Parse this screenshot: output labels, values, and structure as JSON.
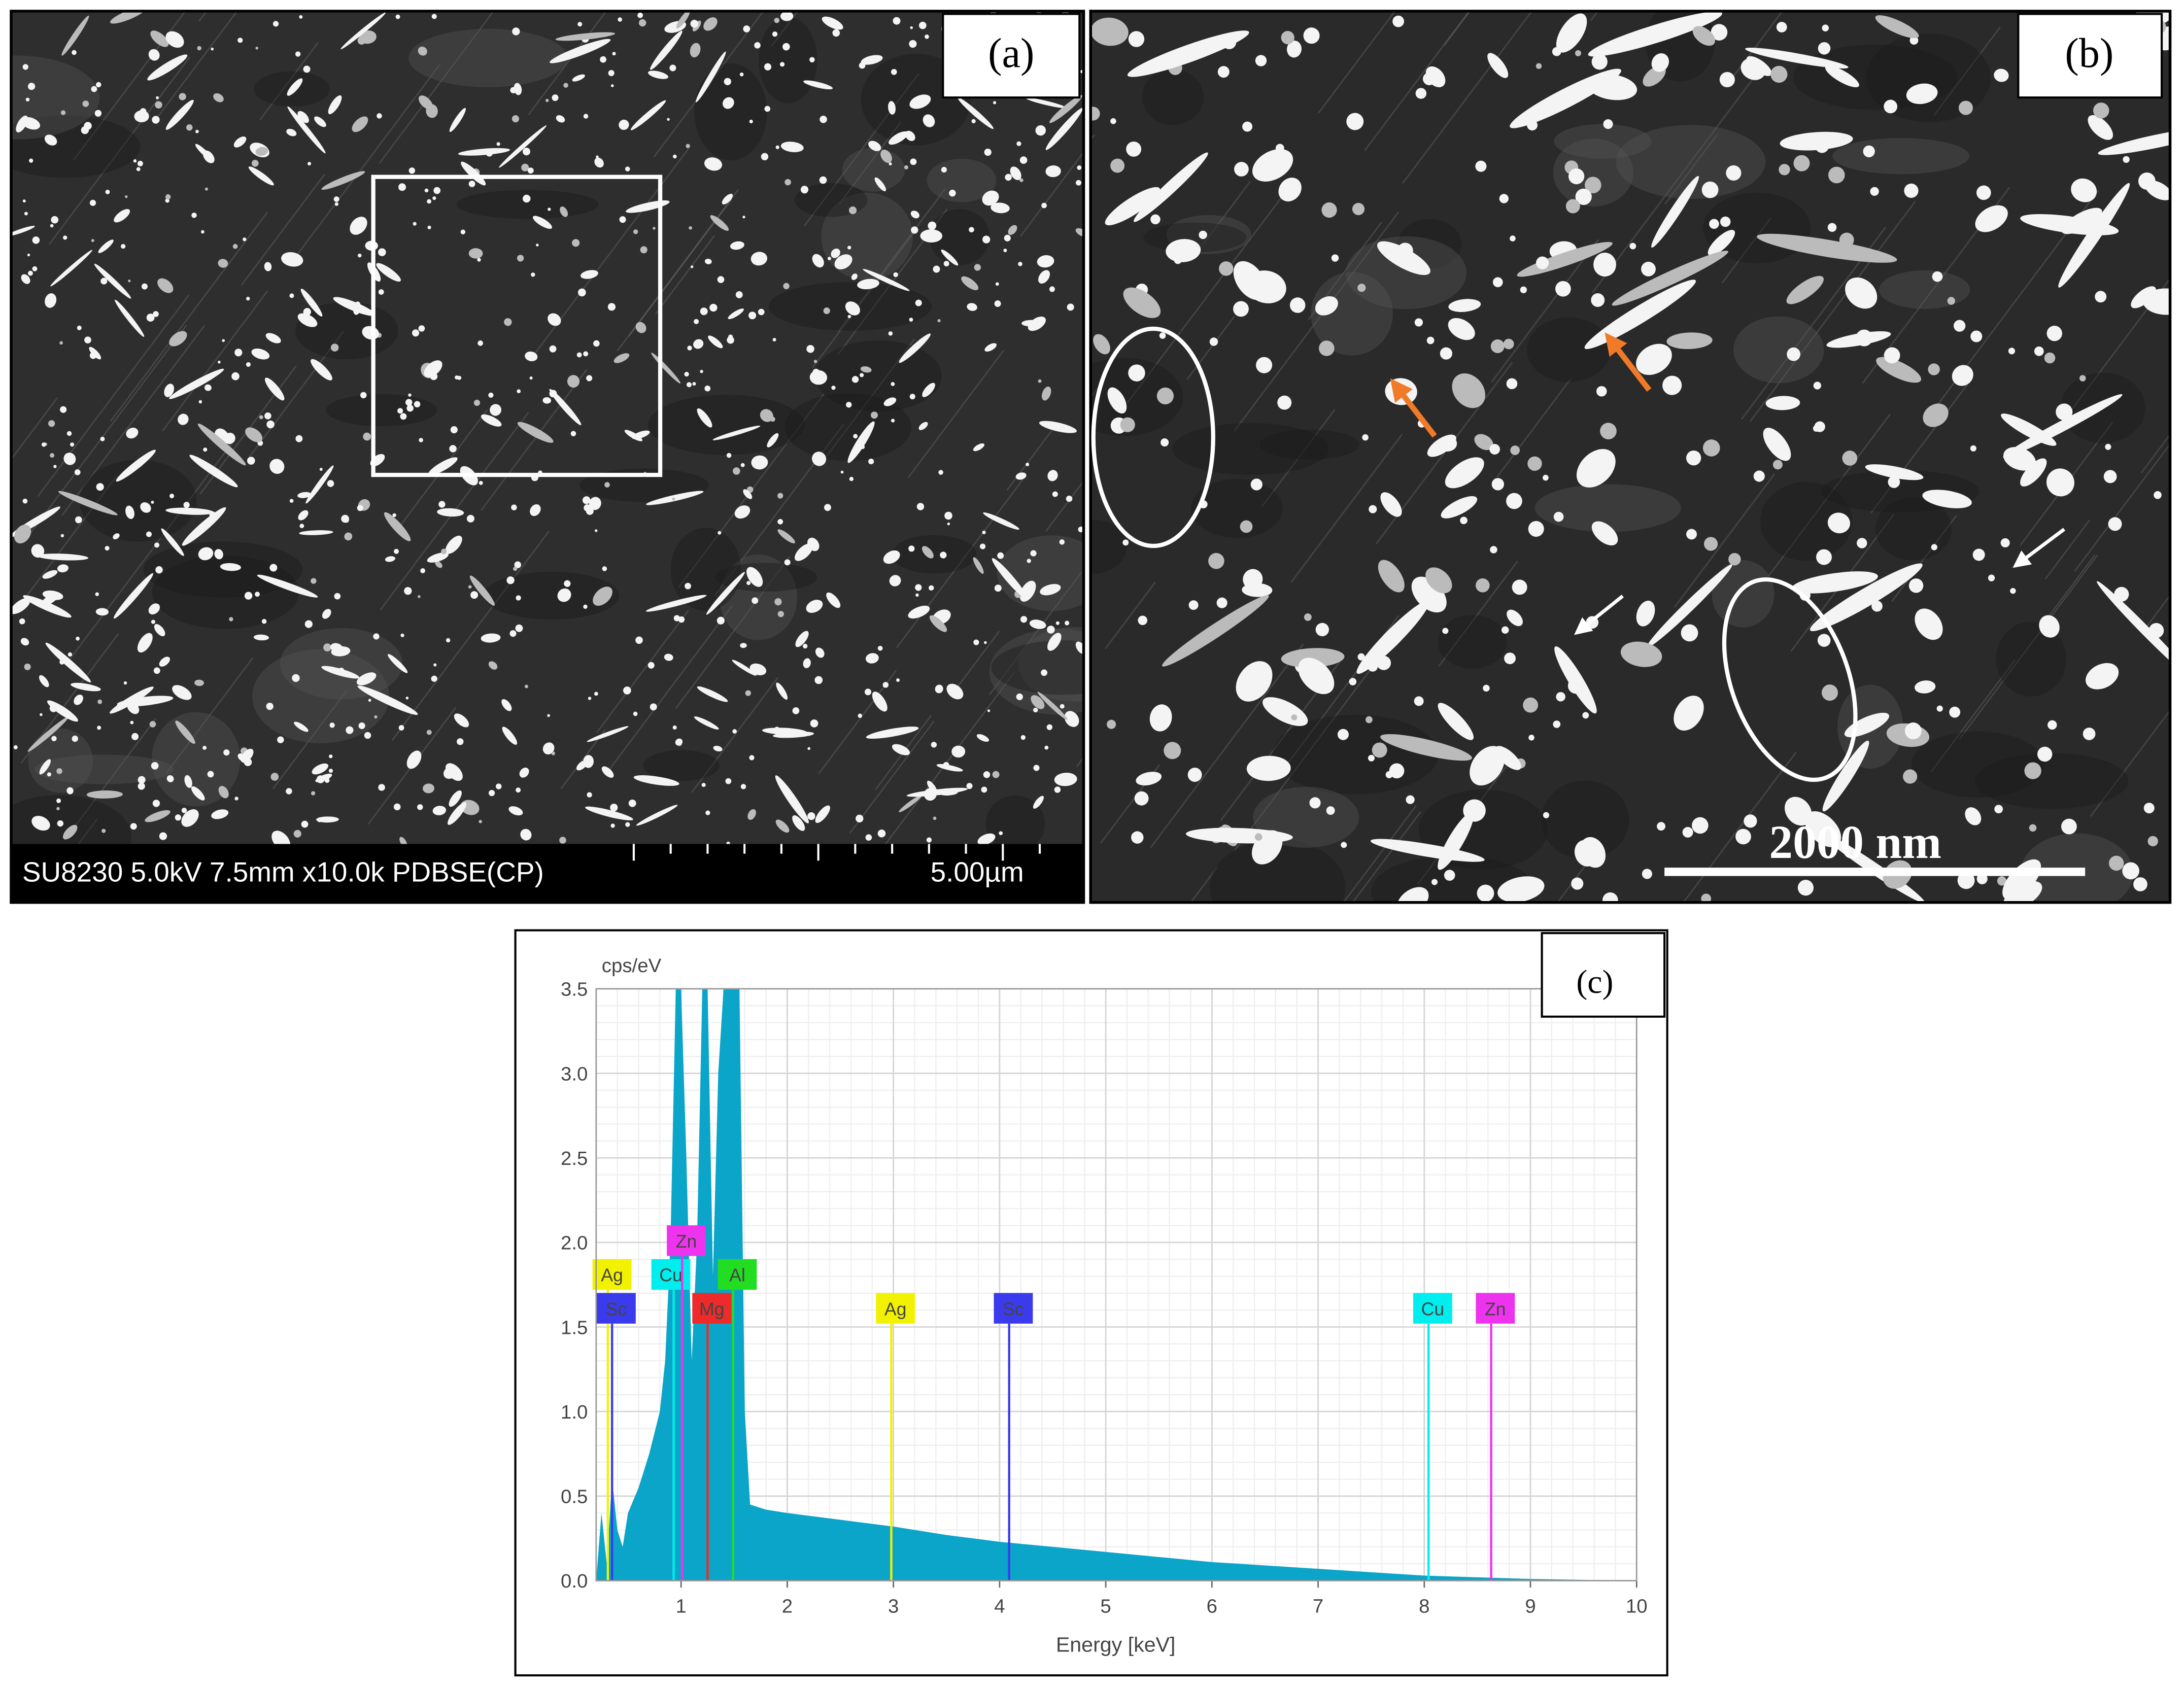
{
  "panels": {
    "a": {
      "label": "(a)",
      "info": "SU8230 5.0kV 7.5mm x10.0k PDBSE(CP)",
      "scale": "5.00µm"
    },
    "b": {
      "label": "(b)",
      "scale": "2000 nm"
    },
    "c": {
      "label": "(c)"
    }
  },
  "chart_data": {
    "type": "area",
    "y_label": "cps/eV",
    "x_label": "Energy [keV]",
    "color": "#0aa5c8",
    "grid": true,
    "x": [
      0.2,
      0.25,
      0.3,
      0.35,
      0.4,
      0.45,
      0.5,
      0.6,
      0.7,
      0.8,
      0.85,
      0.9,
      0.95,
      1.0,
      1.05,
      1.1,
      1.15,
      1.2,
      1.25,
      1.3,
      1.35,
      1.4,
      1.5,
      1.55,
      1.6,
      1.65,
      1.8,
      2.0,
      2.5,
      3.0,
      3.5,
      4.0,
      4.5,
      5.0,
      5.5,
      6.0,
      6.5,
      7.0,
      7.5,
      8.0,
      8.5,
      9.0,
      9.5,
      10
    ],
    "values": [
      0,
      0.4,
      0.1,
      0.6,
      0.3,
      0.2,
      0.4,
      0.55,
      0.75,
      1.0,
      1.3,
      2.0,
      3.5,
      3.5,
      2.5,
      1.3,
      2.0,
      3.5,
      3.5,
      1.8,
      3.0,
      3.5,
      3.5,
      3.5,
      1.0,
      0.45,
      0.42,
      0.4,
      0.36,
      0.32,
      0.27,
      0.23,
      0.2,
      0.17,
      0.14,
      0.11,
      0.09,
      0.07,
      0.05,
      0.03,
      0.02,
      0.01,
      0.005,
      0
    ],
    "xlim": [
      0.2,
      10
    ],
    "ylim": [
      0,
      3.5
    ],
    "xticks": [
      1,
      2,
      3,
      4,
      5,
      6,
      7,
      8,
      9,
      10
    ],
    "yticks": [
      {
        "value": 0,
        "label": "0.0"
      },
      0.5,
      {
        "value": 1,
        "label": "1.0"
      },
      1.5,
      {
        "value": 2,
        "label": "2.0"
      },
      2.5,
      {
        "value": 3,
        "label": "3.0"
      },
      3.5
    ],
    "element_lines": [
      {
        "name": "Ag",
        "energy": 0.31,
        "color": "#f2f200"
      },
      {
        "name": "Sc",
        "energy": 0.35,
        "color": "#3b3bee"
      },
      {
        "name": "Cu",
        "energy": 0.93,
        "color": "#00eeee"
      },
      {
        "name": "Zn",
        "energy": 1.01,
        "color": "#ee33ee"
      },
      {
        "name": "Mg",
        "energy": 1.25,
        "color": "#ee2a2a"
      },
      {
        "name": "Al",
        "energy": 1.49,
        "color": "#22dd22"
      },
      {
        "name": "Ag",
        "energy": 2.98,
        "color": "#f2f200"
      },
      {
        "name": "Sc",
        "energy": 4.09,
        "color": "#3b3bee"
      },
      {
        "name": "Cu",
        "energy": 8.04,
        "color": "#00eeee"
      },
      {
        "name": "Zn",
        "energy": 8.63,
        "color": "#ee33ee"
      }
    ]
  }
}
